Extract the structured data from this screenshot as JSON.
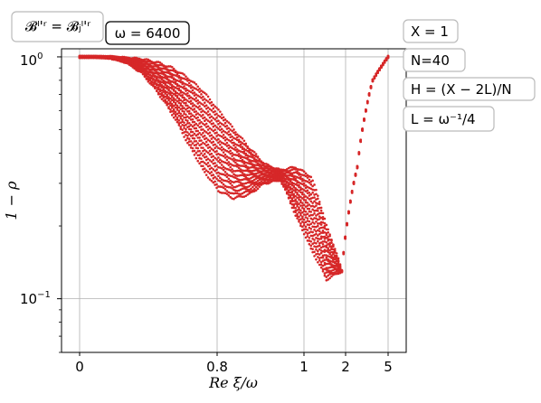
{
  "chart_data": {
    "type": "scatter",
    "xlabel": "Re ξ/ω",
    "ylabel": "1 − ρ",
    "yscale": "log",
    "ylim": [
      0.06,
      1.08
    ],
    "x_ticks": [
      "0",
      "0.8",
      "1",
      "2",
      "5"
    ],
    "y_ticks": [
      {
        "base": "10",
        "exp": "0",
        "value": 1
      },
      {
        "base": "10",
        "exp": "−1",
        "value": 0.1
      }
    ],
    "grid": true,
    "marker_color": "#d62728",
    "annotations": {
      "top_left": [
        "𝓑ˡ'ʳ = 𝓑ⱼˡ'ʳ",
        "ω = 6400"
      ],
      "right": [
        "X = 1",
        "N=40",
        "H = (X − 2L)/N",
        "L = ω⁻¹/4"
      ]
    },
    "series": [
      {
        "x_position": [
          0.0,
          0.05,
          0.1,
          0.15,
          0.2,
          0.25,
          0.3,
          0.35,
          0.4,
          0.45,
          0.5,
          0.55,
          0.6,
          0.65,
          0.7,
          0.75,
          0.8,
          0.85,
          0.9,
          0.95,
          1.0
        ],
        "upper": [
          1.0,
          1.0,
          1.0,
          0.99,
          0.98,
          0.95,
          0.9,
          0.82,
          0.72,
          0.6,
          0.5,
          0.42,
          0.36,
          0.34,
          0.35,
          0.32,
          0.2,
          0.13,
          0.35,
          0.8,
          1.0
        ],
        "lower": [
          1.0,
          1.0,
          0.99,
          0.95,
          0.86,
          0.72,
          0.58,
          0.44,
          0.34,
          0.28,
          0.26,
          0.27,
          0.3,
          0.31,
          0.22,
          0.16,
          0.12,
          0.13,
          0.35,
          0.8,
          1.0
        ]
      }
    ]
  }
}
